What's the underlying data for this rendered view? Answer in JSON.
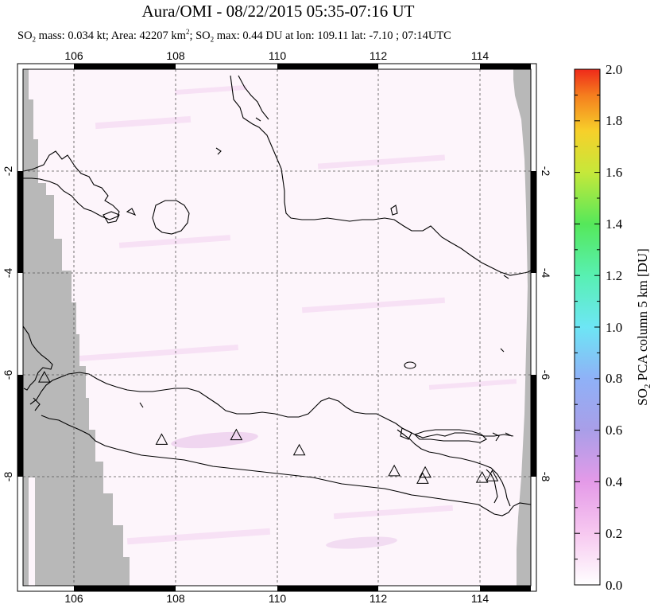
{
  "header": {
    "title": "Aura/OMI - 08/22/2015 05:35-07:16 UT",
    "subtitle": {
      "so2_prefix": "SO",
      "so2_sub": "2",
      "mass_text": " mass: 0.034 kt; Area: 42207 km",
      "area_sup": "2",
      "max_prefix": "; SO",
      "max_sub": "2",
      "max_text": " max: 0.44 DU at lon: 109.11 lat: -7.10 ; 07:14UTC"
    }
  },
  "map": {
    "lon_range": [
      105.0,
      115.0
    ],
    "lat_range": [
      -10.2,
      0.0
    ],
    "top_lon_ticks": [
      "106",
      "108",
      "110",
      "112",
      "114"
    ],
    "bottom_lon_ticks": [
      "106",
      "108",
      "110",
      "112",
      "114"
    ],
    "left_lat_ticks": [
      "-2",
      "-4",
      "-6",
      "-8"
    ],
    "right_lat_ticks": [
      "-2",
      "-4",
      "-6",
      "-8"
    ],
    "volcano_marker": "triangle-icon",
    "volcanoes": [
      {
        "lon": 105.42,
        "lat": -6.1
      },
      {
        "lon": 107.73,
        "lat": -7.33
      },
      {
        "lon": 109.2,
        "lat": -7.24
      },
      {
        "lon": 110.44,
        "lat": -7.54
      },
      {
        "lon": 112.31,
        "lat": -7.95
      },
      {
        "lon": 112.92,
        "lat": -7.98
      },
      {
        "lon": 112.87,
        "lat": -8.1
      },
      {
        "lon": 114.04,
        "lat": -8.08
      },
      {
        "lon": 114.24,
        "lat": -8.05
      }
    ],
    "colors": {
      "no_data": "#b8b8b8",
      "land_outline": "#000000",
      "low_so2": "#fdf3fb",
      "plume": "#f0d6f0"
    }
  },
  "colorbar": {
    "label": "SO2 PCA column 5 km [DU]",
    "label_prefix": "SO",
    "label_sub": "2",
    "label_rest": " PCA column 5 km [DU]",
    "ticks": [
      "0.0",
      "0.2",
      "0.4",
      "0.6",
      "0.8",
      "1.0",
      "1.2",
      "1.4",
      "1.6",
      "1.8",
      "2.0"
    ],
    "range": [
      0.0,
      2.0
    ]
  }
}
